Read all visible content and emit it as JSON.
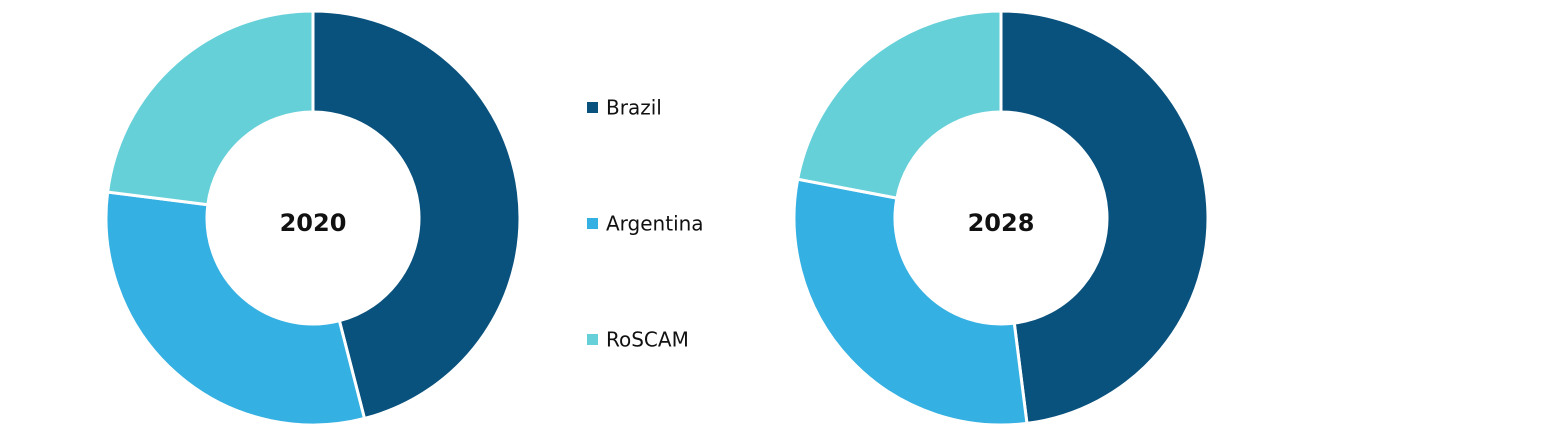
{
  "chart_data": [
    {
      "type": "pie",
      "title": "2020",
      "categories": [
        "Brazil",
        "Argentina",
        "RoSCAM"
      ],
      "values": [
        46,
        31,
        23
      ],
      "colors": [
        "#0a527e",
        "#35b0e2",
        "#66d0d9"
      ]
    },
    {
      "type": "pie",
      "title": "2028",
      "categories": [
        "Brazil",
        "Argentina",
        "RoSCAM"
      ],
      "values": [
        48,
        30,
        22
      ],
      "colors": [
        "#0a527e",
        "#35b0e2",
        "#66d0d9"
      ]
    }
  ]
}
